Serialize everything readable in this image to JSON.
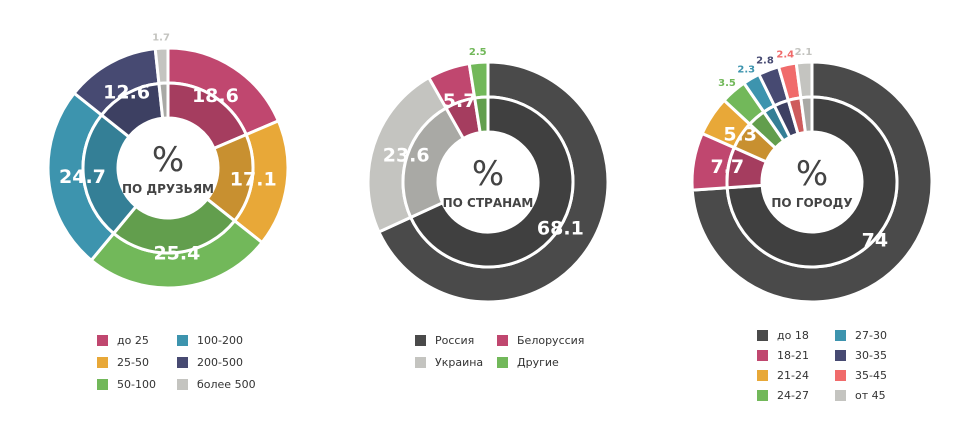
{
  "chart_data": [
    {
      "type": "pie",
      "center_symbol": "%",
      "center_label": "ПО ДРУЗЬЯМ",
      "categories": [
        "до 25",
        "25-50",
        "50-100",
        "100-200",
        "200-500",
        "более 500"
      ],
      "values": [
        18.6,
        17.1,
        25.4,
        24.7,
        12.6,
        1.7
      ],
      "colors": [
        "#c0476f",
        "#e8a838",
        "#72b85a",
        "#3d94ae",
        "#474a72",
        "#c4c4c0"
      ],
      "legend": [
        {
          "label": "до 25",
          "color": "#c0476f"
        },
        {
          "label": "100-200",
          "color": "#3d94ae"
        },
        {
          "label": "25-50",
          "color": "#e8a838"
        },
        {
          "label": "200-500",
          "color": "#474a72"
        },
        {
          "label": "50-100",
          "color": "#72b85a"
        },
        {
          "label": "более 500",
          "color": "#c4c4c0"
        }
      ]
    },
    {
      "type": "pie",
      "center_symbol": "%",
      "center_label": "ПО СТРАНАМ",
      "categories": [
        "Россия",
        "Украина",
        "Белоруссия",
        "Другие"
      ],
      "values": [
        68.1,
        23.6,
        5.7,
        2.5
      ],
      "colors": [
        "#4a4a4a",
        "#c4c4c0",
        "#c0476f",
        "#72b85a"
      ],
      "legend": [
        {
          "label": "Россия",
          "color": "#4a4a4a"
        },
        {
          "label": "Белоруссия",
          "color": "#c0476f"
        },
        {
          "label": "Украина",
          "color": "#c4c4c0"
        },
        {
          "label": "Другие",
          "color": "#72b85a"
        }
      ]
    },
    {
      "type": "pie",
      "center_symbol": "%",
      "center_label": "ПО ГОРОДУ",
      "categories": [
        "до 18",
        "18-21",
        "21-24",
        "24-27",
        "27-30",
        "30-35",
        "35-45",
        "от 45"
      ],
      "values": [
        74,
        7.7,
        5.3,
        3.5,
        2.3,
        2.8,
        2.4,
        2.1
      ],
      "colors": [
        "#4a4a4a",
        "#c0476f",
        "#e8a838",
        "#72b85a",
        "#3d94ae",
        "#474a72",
        "#f06b6b",
        "#c4c4c0"
      ],
      "legend": [
        {
          "label": "до 18",
          "color": "#4a4a4a"
        },
        {
          "label": "27-30",
          "color": "#3d94ae"
        },
        {
          "label": "18-21",
          "color": "#c0476f"
        },
        {
          "label": "30-35",
          "color": "#474a72"
        },
        {
          "label": "21-24",
          "color": "#e8a838"
        },
        {
          "label": "35-45",
          "color": "#f06b6b"
        },
        {
          "label": "24-27",
          "color": "#72b85a"
        },
        {
          "label": "от 45",
          "color": "#c4c4c0"
        }
      ]
    }
  ]
}
